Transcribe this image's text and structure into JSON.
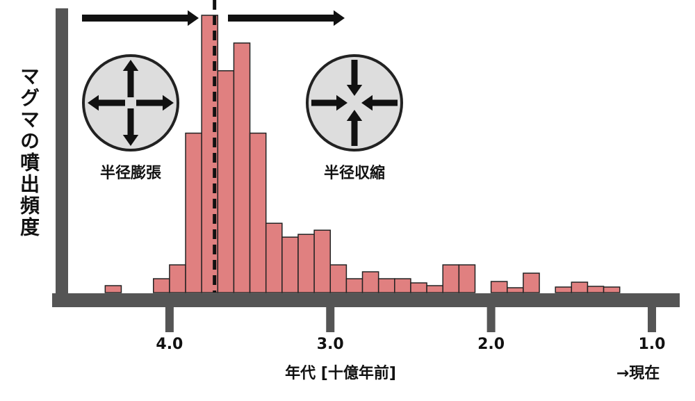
{
  "chart_data": {
    "type": "histogram",
    "ylabel": "マグマの噴出頻度",
    "xlabel": "年代 [十億年前]",
    "note": "→現在",
    "expansion_label": "半径膨張",
    "contraction_label": "半径収縮",
    "bins": [
      4.4,
      4.3,
      4.2,
      4.1,
      4.0,
      3.9,
      3.8,
      3.7,
      3.6,
      3.5,
      3.4,
      3.3,
      3.2,
      3.1,
      3.0,
      2.9,
      2.8,
      2.7,
      2.6,
      2.5,
      2.4,
      2.3,
      2.2,
      2.1,
      2.0,
      1.9,
      1.8,
      1.7,
      1.6,
      1.5,
      1.4,
      1.3,
      1.2
    ],
    "values": [
      1,
      0,
      0,
      2,
      4,
      23,
      40,
      32,
      36,
      23,
      10,
      8,
      8.4,
      9,
      4,
      2,
      3,
      2,
      2,
      1.4,
      1,
      4,
      4,
      0,
      1.6,
      0.7,
      2.8,
      0,
      0.8,
      1.5,
      0.9,
      0.8
    ],
    "color": "#e08080",
    "boundary": 3.72,
    "xlim": [
      4.73,
      0.84
    ],
    "ylim": [
      0,
      40
    ],
    "xticks": [
      {
        "value": 4,
        "label": "4.0"
      },
      {
        "value": 3,
        "label": "3.0"
      },
      {
        "value": 2,
        "label": "2.0"
      },
      {
        "value": 1,
        "label": "1.0"
      }
    ]
  }
}
